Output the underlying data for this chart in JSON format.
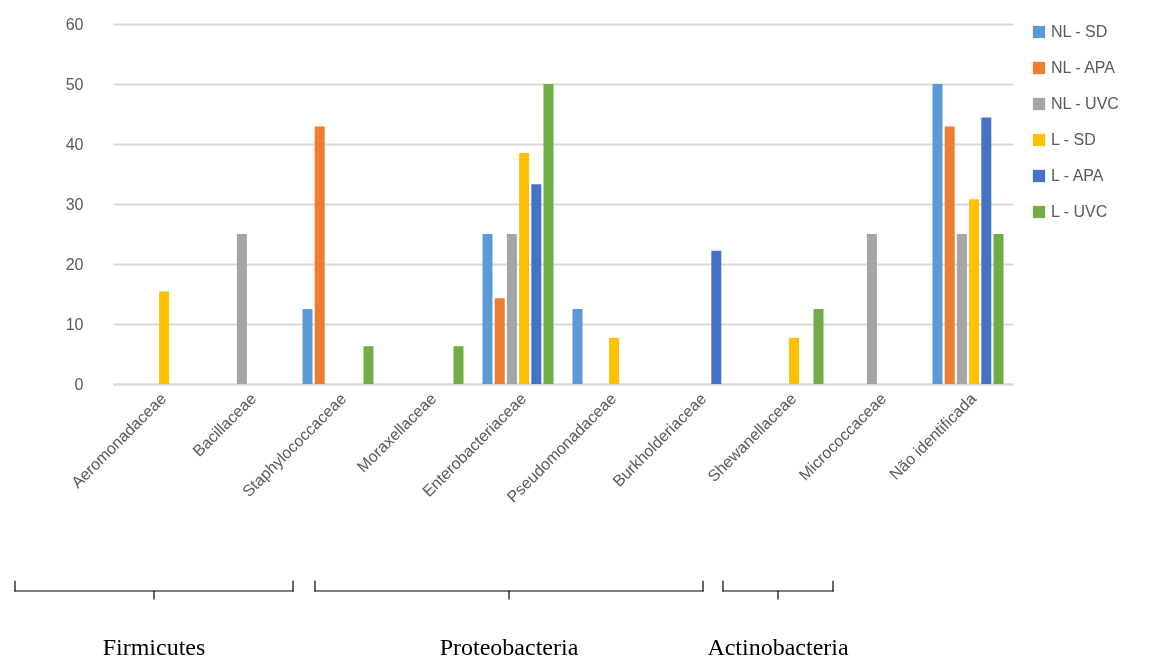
{
  "chart_data": {
    "type": "bar",
    "categories": [
      "Aeromonadaceae",
      "Bacillaceae",
      "Staphylococcaceae",
      "Moraxellaceae",
      "Enterobacteriaceae",
      "Pseudomonadaceae",
      "Burkholderiaceae",
      "Shewanellaceae",
      "Micrococcaceae",
      "Não identificada"
    ],
    "series": [
      {
        "name": "NL - SD",
        "color": "#5b9bd5",
        "values": [
          null,
          null,
          12.5,
          null,
          25,
          12.5,
          null,
          null,
          null,
          50
        ]
      },
      {
        "name": "NL - APA",
        "color": "#ed7d31",
        "values": [
          null,
          null,
          42.9,
          null,
          14.3,
          null,
          null,
          null,
          null,
          42.9
        ]
      },
      {
        "name": "NL - UVC",
        "color": "#a5a5a5",
        "values": [
          null,
          25,
          null,
          null,
          25,
          null,
          null,
          null,
          25,
          25
        ]
      },
      {
        "name": "L - SD",
        "color": "#ffc000",
        "values": [
          15.4,
          null,
          null,
          null,
          38.5,
          7.7,
          null,
          7.7,
          null,
          30.8
        ]
      },
      {
        "name": "L - APA",
        "color": "#4472c4",
        "values": [
          null,
          null,
          null,
          null,
          33.3,
          null,
          22.2,
          null,
          null,
          44.4
        ]
      },
      {
        "name": "L - UVC",
        "color": "#70ad47",
        "values": [
          null,
          null,
          6.3,
          6.3,
          50,
          null,
          null,
          12.5,
          null,
          25
        ]
      }
    ],
    "ylim": [
      0,
      60
    ],
    "yticks": [
      0,
      10,
      20,
      30,
      40,
      50,
      60
    ],
    "grid": "y",
    "legend": "right",
    "annotations": [
      "Firmicutes",
      "Proteobacteria",
      "Actinobacteria"
    ]
  }
}
